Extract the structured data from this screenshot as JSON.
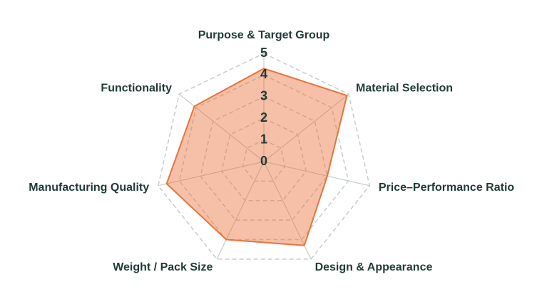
{
  "chart_data": {
    "type": "radar",
    "categories": [
      "Purpose & Target Group",
      "Material Selection",
      "Price–Performance Ratio",
      "Design & Appearance",
      "Weight / Pack Size",
      "Manufacturing Quality",
      "Functionality"
    ],
    "values": [
      4.3,
      4.9,
      3.0,
      4.3,
      4.0,
      4.6,
      4.1
    ],
    "color": "#e8743b",
    "rlim": [
      0,
      5
    ],
    "rticks": [
      0,
      1,
      2,
      3,
      4,
      5
    ],
    "grid": true
  }
}
